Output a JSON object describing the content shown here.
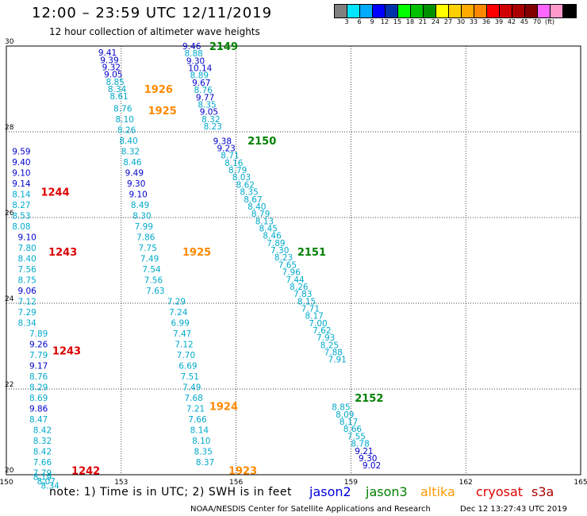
{
  "title": "12:00 – 23:59 UTC 12/11/2019",
  "subtitle": "12 hour collection of altimeter wave heights",
  "colorbar": {
    "colors": [
      "#808080",
      "#00e5ff",
      "#00aaff",
      "#0000ff",
      "#0033aa",
      "#00ff00",
      "#00c000",
      "#009000",
      "#ffff00",
      "#ffd000",
      "#ffaa00",
      "#ff8800",
      "#ff0000",
      "#d00000",
      "#aa0000",
      "#800000",
      "#ff66ff",
      "#ff99cc",
      "#000000"
    ],
    "ticks": [
      "3",
      "6",
      "9",
      "12",
      "15",
      "18",
      "21",
      "24",
      "27",
      "30",
      "33",
      "36",
      "39",
      "42",
      "45",
      "70",
      "(ft)"
    ]
  },
  "footer": {
    "note": "note:  1) Time is in UTC;  2) SWH is in feet",
    "credit": "NOAA/NESDIS Center for Satellite Applications and Research",
    "timestamp": "Dec 12 13:27:43 UTC 2019",
    "satellites": [
      {
        "name": "jason2",
        "color": "#0000dd"
      },
      {
        "name": "jason3",
        "color": "#008000"
      },
      {
        "name": "altika",
        "color": "#ff9900"
      },
      {
        "name": "cryosat",
        "color": "#dd0000"
      },
      {
        "name": "s3a",
        "color": "#aa0000"
      }
    ]
  },
  "chart_data": {
    "type": "scatter",
    "xlim": [
      150,
      165
    ],
    "ylim": [
      20,
      30
    ],
    "xticks": [
      "150",
      "153",
      "156",
      "159",
      "162",
      "165"
    ],
    "yticks": [
      "20",
      "22",
      "24",
      "26",
      "28",
      "30"
    ],
    "grid": true,
    "colors": {
      "cyan": "#00aacc",
      "blue": "#0000cc"
    },
    "tracks": [
      {
        "label": "2149",
        "label_color": "#008000",
        "label_at": [
          155.3,
          30
        ],
        "points": [
          [
            154.6,
            30,
            "9.46",
            "blue"
          ],
          [
            154.65,
            29.83,
            "8.88",
            "cyan"
          ],
          [
            154.7,
            29.66,
            "9.30",
            "blue"
          ],
          [
            154.75,
            29.49,
            "10.14",
            "blue"
          ],
          [
            154.8,
            29.32,
            "8.89",
            "cyan"
          ],
          [
            154.85,
            29.15,
            "9.67",
            "blue"
          ],
          [
            154.9,
            28.98,
            "8.76",
            "cyan"
          ],
          [
            154.95,
            28.81,
            "9.77",
            "blue"
          ],
          [
            155.0,
            28.64,
            "8.35",
            "cyan"
          ],
          [
            155.05,
            28.47,
            "9.05",
            "blue"
          ],
          [
            155.1,
            28.3,
            "8.32",
            "cyan"
          ],
          [
            155.15,
            28.13,
            "8.23",
            "cyan"
          ]
        ]
      },
      {
        "label": "2150",
        "label_color": "#008000",
        "label_at": [
          156.3,
          27.8
        ],
        "points": [
          [
            155.4,
            27.79,
            "9.38",
            "blue"
          ],
          [
            155.5,
            27.62,
            "9.23",
            "blue"
          ],
          [
            155.6,
            27.45,
            "8.71",
            "cyan"
          ],
          [
            155.7,
            27.28,
            "8.16",
            "cyan"
          ],
          [
            155.8,
            27.11,
            "8.79",
            "cyan"
          ],
          [
            155.9,
            26.94,
            "8.03",
            "cyan"
          ],
          [
            156.0,
            26.77,
            "8.62",
            "cyan"
          ],
          [
            156.1,
            26.6,
            "8.35",
            "cyan"
          ],
          [
            156.2,
            26.43,
            "8.67",
            "cyan"
          ],
          [
            156.3,
            26.26,
            "8.40",
            "cyan"
          ],
          [
            156.4,
            26.09,
            "8.79",
            "cyan"
          ],
          [
            156.5,
            25.92,
            "8.13",
            "cyan"
          ],
          [
            156.6,
            25.75,
            "8.45",
            "cyan"
          ],
          [
            156.7,
            25.58,
            "8.46",
            "cyan"
          ],
          [
            156.8,
            25.41,
            "7.89",
            "cyan"
          ],
          [
            156.9,
            25.24,
            "7.30",
            "cyan"
          ]
        ]
      },
      {
        "label": "2151",
        "label_color": "#008000",
        "label_at": [
          157.6,
          25.2
        ],
        "points": [
          [
            157.0,
            25.07,
            "8.23",
            "cyan"
          ],
          [
            157.1,
            24.9,
            "7.65",
            "cyan"
          ],
          [
            157.2,
            24.73,
            "7.96",
            "cyan"
          ],
          [
            157.3,
            24.56,
            "7.44",
            "cyan"
          ],
          [
            157.4,
            24.39,
            "8.26",
            "cyan"
          ],
          [
            157.5,
            24.22,
            "7.83",
            "cyan"
          ],
          [
            157.6,
            24.05,
            "8.15",
            "cyan"
          ],
          [
            157.7,
            23.88,
            "7.71",
            "cyan"
          ],
          [
            157.8,
            23.71,
            "8.17",
            "cyan"
          ],
          [
            157.9,
            23.54,
            "7.00",
            "cyan"
          ],
          [
            158.0,
            23.37,
            "7.62",
            "cyan"
          ],
          [
            158.1,
            23.2,
            "7.93",
            "cyan"
          ],
          [
            158.2,
            23.03,
            "8.25",
            "cyan"
          ],
          [
            158.3,
            22.86,
            "7.88",
            "cyan"
          ],
          [
            158.4,
            22.69,
            "7.91",
            "cyan"
          ]
        ]
      },
      {
        "label": "2152",
        "label_color": "#008000",
        "label_at": [
          159.1,
          21.8
        ],
        "points": [
          [
            158.5,
            21.58,
            "8.85",
            "cyan"
          ],
          [
            158.6,
            21.41,
            "8.09",
            "cyan"
          ],
          [
            158.7,
            21.24,
            "8.17",
            "cyan"
          ],
          [
            158.8,
            21.07,
            "8.66",
            "cyan"
          ],
          [
            158.9,
            20.9,
            "7.55",
            "cyan"
          ],
          [
            159.0,
            20.73,
            "8.78",
            "cyan"
          ],
          [
            159.1,
            20.56,
            "9.21",
            "blue"
          ],
          [
            159.2,
            20.39,
            "9.30",
            "blue"
          ],
          [
            159.3,
            20.22,
            "9.02",
            "blue"
          ]
        ]
      },
      {
        "label": "1926",
        "label_color": "#ff8800",
        "label_at": [
          153.6,
          29.0
        ],
        "points": [
          [
            152.4,
            29.85,
            "9.41",
            "blue"
          ],
          [
            152.45,
            29.68,
            "9.39",
            "blue"
          ],
          [
            152.5,
            29.51,
            "9.32",
            "blue"
          ],
          [
            152.55,
            29.34,
            "9.05",
            "blue"
          ],
          [
            152.6,
            29.17,
            "8.85",
            "cyan"
          ],
          [
            152.65,
            29.0,
            "8.34",
            "cyan"
          ],
          [
            152.7,
            28.83,
            "8.61",
            "cyan"
          ]
        ]
      },
      {
        "label": "1925",
        "label_color": "#ff8800",
        "label_at": [
          153.7,
          28.5
        ],
        "points": [
          [
            152.8,
            28.55,
            "8.76",
            "cyan"
          ],
          [
            152.85,
            28.3,
            "8.10",
            "cyan"
          ],
          [
            152.9,
            28.05,
            "8.26",
            "cyan"
          ],
          [
            152.95,
            27.8,
            "8.40",
            "cyan"
          ],
          [
            153.0,
            27.55,
            "8.32",
            "cyan"
          ],
          [
            153.05,
            27.3,
            "8.46",
            "cyan"
          ],
          [
            153.1,
            27.05,
            "9.49",
            "blue"
          ],
          [
            153.15,
            26.8,
            "9.30",
            "blue"
          ],
          [
            153.2,
            26.55,
            "9.10",
            "blue"
          ],
          [
            153.25,
            26.3,
            "8.49",
            "cyan"
          ],
          [
            153.3,
            26.05,
            "8.30",
            "cyan"
          ],
          [
            153.35,
            25.8,
            "7.99",
            "cyan"
          ],
          [
            153.4,
            25.55,
            "7.86",
            "cyan"
          ],
          [
            153.45,
            25.3,
            "7.75",
            "cyan"
          ],
          [
            153.5,
            25.05,
            "7.49",
            "cyan"
          ],
          [
            153.55,
            24.8,
            "7.54",
            "cyan"
          ],
          [
            153.6,
            24.55,
            "7.56",
            "cyan"
          ],
          [
            153.65,
            24.3,
            "7.63",
            "cyan"
          ]
        ]
      },
      {
        "label": "1925",
        "label_color": "#ff8800",
        "label_at": [
          154.6,
          25.2
        ],
        "points": []
      },
      {
        "label": "1924",
        "label_color": "#ff8800",
        "label_at": [
          155.3,
          21.6
        ],
        "points": [
          [
            154.2,
            24.05,
            "7.29",
            "cyan"
          ],
          [
            154.25,
            23.8,
            "7.24",
            "cyan"
          ],
          [
            154.3,
            23.55,
            "6.99",
            "cyan"
          ],
          [
            154.35,
            23.3,
            "7.47",
            "cyan"
          ],
          [
            154.4,
            23.05,
            "7.12",
            "cyan"
          ],
          [
            154.45,
            22.8,
            "7.70",
            "cyan"
          ],
          [
            154.5,
            22.55,
            "6.69",
            "cyan"
          ],
          [
            154.55,
            22.3,
            "7.51",
            "cyan"
          ],
          [
            154.6,
            22.05,
            "7.49",
            "cyan"
          ],
          [
            154.65,
            21.8,
            "7.68",
            "cyan"
          ],
          [
            154.7,
            21.55,
            "7.21",
            "cyan"
          ],
          [
            154.75,
            21.3,
            "7.66",
            "cyan"
          ],
          [
            154.8,
            21.05,
            "8.14",
            "cyan"
          ],
          [
            154.85,
            20.8,
            "8.10",
            "cyan"
          ],
          [
            154.9,
            20.55,
            "8.35",
            "cyan"
          ],
          [
            154.95,
            20.3,
            "8.37",
            "cyan"
          ]
        ]
      },
      {
        "label": "1923",
        "label_color": "#ff8800",
        "label_at": [
          155.8,
          20.1
        ],
        "points": []
      },
      {
        "label": "1244",
        "label_color": "#dd0000",
        "label_at": [
          150.9,
          26.6
        ],
        "points": [
          [
            150.15,
            27.55,
            "9.59",
            "blue"
          ],
          [
            150.15,
            27.3,
            "9.40",
            "blue"
          ],
          [
            150.15,
            27.05,
            "9.10",
            "blue"
          ],
          [
            150.15,
            26.8,
            "9.14",
            "blue"
          ],
          [
            150.15,
            26.55,
            "8.14",
            "cyan"
          ],
          [
            150.15,
            26.3,
            "8.27",
            "cyan"
          ],
          [
            150.15,
            26.05,
            "8.53",
            "cyan"
          ],
          [
            150.15,
            25.8,
            "8.08",
            "cyan"
          ]
        ]
      },
      {
        "label": "1243",
        "label_color": "#dd0000",
        "label_at": [
          151.1,
          25.2
        ],
        "points": [
          [
            150.3,
            25.55,
            "9.10",
            "blue"
          ],
          [
            150.3,
            25.3,
            "7.80",
            "cyan"
          ],
          [
            150.3,
            25.05,
            "8.40",
            "cyan"
          ],
          [
            150.3,
            24.8,
            "7.56",
            "cyan"
          ],
          [
            150.3,
            24.55,
            "8.75",
            "cyan"
          ],
          [
            150.3,
            24.3,
            "9.06",
            "blue"
          ],
          [
            150.3,
            24.05,
            "7.12",
            "cyan"
          ],
          [
            150.3,
            23.8,
            "7.29",
            "cyan"
          ],
          [
            150.3,
            23.55,
            "8.34",
            "cyan"
          ]
        ]
      },
      {
        "label": "1243",
        "label_color": "#dd0000",
        "label_at": [
          151.2,
          22.9
        ],
        "points": [
          [
            150.6,
            23.3,
            "7.89",
            "cyan"
          ],
          [
            150.6,
            23.05,
            "9.26",
            "blue"
          ],
          [
            150.6,
            22.8,
            "7.79",
            "cyan"
          ],
          [
            150.6,
            22.55,
            "9.17",
            "blue"
          ],
          [
            150.6,
            22.3,
            "8.76",
            "cyan"
          ],
          [
            150.6,
            22.05,
            "8.29",
            "cyan"
          ],
          [
            150.6,
            21.8,
            "8.69",
            "cyan"
          ],
          [
            150.6,
            21.55,
            "9.86",
            "blue"
          ],
          [
            150.6,
            21.3,
            "8.47",
            "cyan"
          ]
        ]
      },
      {
        "label": "1242",
        "label_color": "#dd0000",
        "label_at": [
          151.7,
          20.1
        ],
        "points": [
          [
            150.7,
            21.05,
            "8.42",
            "cyan"
          ],
          [
            150.7,
            20.8,
            "8.32",
            "cyan"
          ],
          [
            150.7,
            20.55,
            "8.42",
            "cyan"
          ],
          [
            150.7,
            20.3,
            "7.66",
            "cyan"
          ],
          [
            150.7,
            20.05,
            "7.79",
            "cyan"
          ],
          [
            150.7,
            19.95,
            "8.19",
            "cyan"
          ],
          [
            150.8,
            19.85,
            "8.07",
            "cyan"
          ],
          [
            150.9,
            19.75,
            "8.34",
            "cyan"
          ]
        ]
      }
    ]
  }
}
